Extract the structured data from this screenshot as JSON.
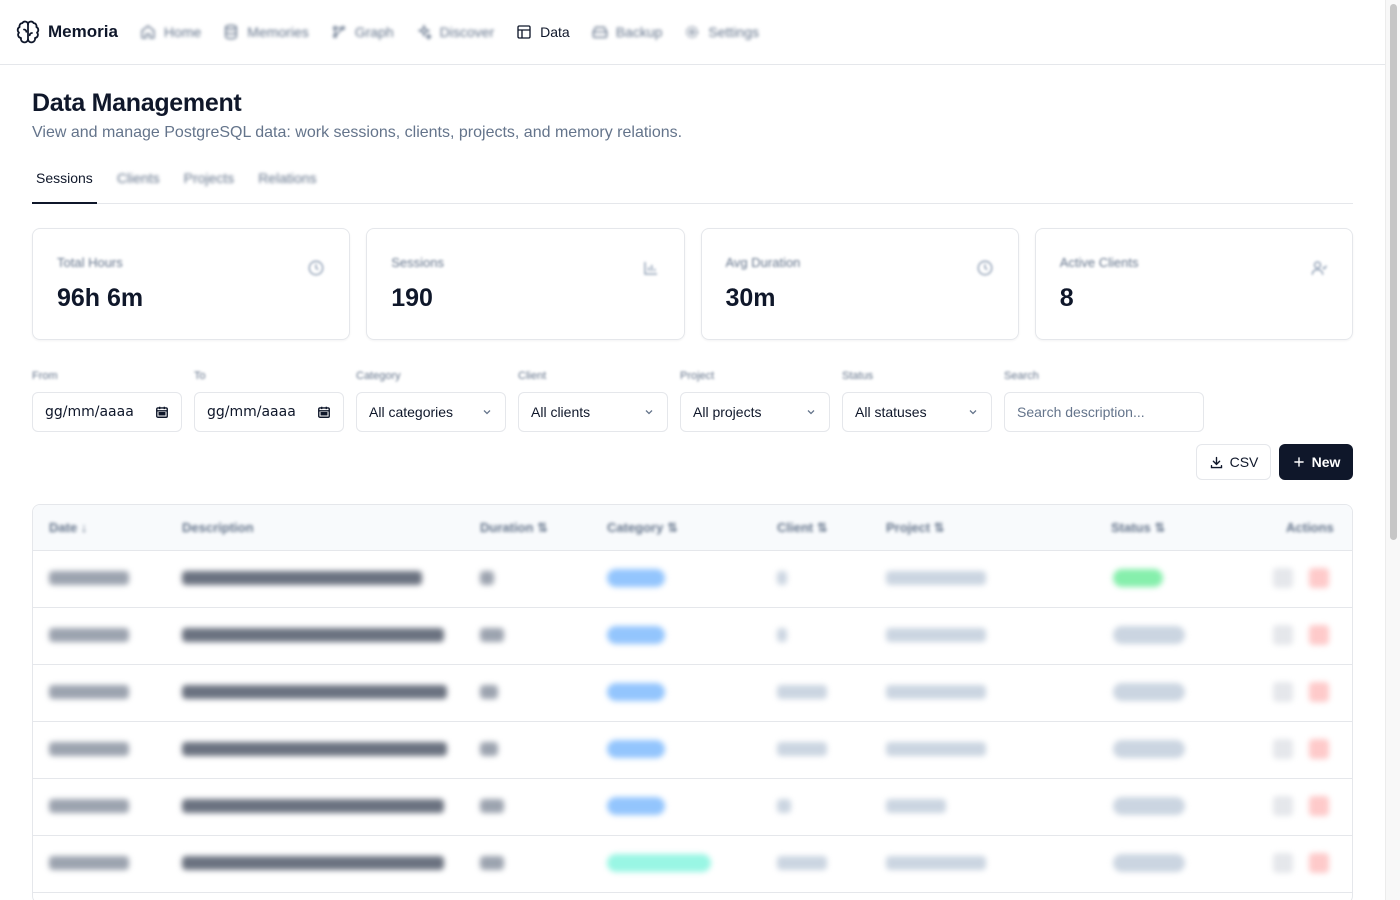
{
  "app": {
    "name": "Memoria"
  },
  "nav": [
    {
      "label": "Home",
      "icon": "home-icon",
      "active": false
    },
    {
      "label": "Memories",
      "icon": "database-icon",
      "active": false
    },
    {
      "label": "Graph",
      "icon": "graph-icon",
      "active": false
    },
    {
      "label": "Discover",
      "icon": "sparkles-icon",
      "active": false
    },
    {
      "label": "Data",
      "icon": "table-icon",
      "active": true
    },
    {
      "label": "Backup",
      "icon": "hard-drive-icon",
      "active": false
    },
    {
      "label": "Settings",
      "icon": "gear-icon",
      "active": false
    }
  ],
  "header": {
    "title": "Data Management",
    "subtitle": "View and manage PostgreSQL data: work sessions, clients, projects, and memory relations."
  },
  "tabs": [
    {
      "label": "Sessions",
      "active": true
    },
    {
      "label": "Clients",
      "active": false
    },
    {
      "label": "Projects",
      "active": false
    },
    {
      "label": "Relations",
      "active": false
    }
  ],
  "stats": [
    {
      "label": "Total Hours",
      "value": "96h 6m",
      "icon": "clock-icon"
    },
    {
      "label": "Sessions",
      "value": "190",
      "icon": "bar-chart-icon"
    },
    {
      "label": "Avg Duration",
      "value": "30m",
      "icon": "clock-icon"
    },
    {
      "label": "Active Clients",
      "value": "8",
      "icon": "users-icon"
    }
  ],
  "filters": {
    "from": {
      "label": "From",
      "value": "gg/mm/aaaa"
    },
    "to": {
      "label": "To",
      "value": "gg/mm/aaaa"
    },
    "category": {
      "label": "Category",
      "value": "All categories"
    },
    "client": {
      "label": "Client",
      "value": "All clients"
    },
    "project": {
      "label": "Project",
      "value": "All projects"
    },
    "status": {
      "label": "Status",
      "value": "All statuses"
    },
    "search": {
      "label": "Search",
      "placeholder": "Search description..."
    }
  },
  "actions": {
    "csv_label": "CSV",
    "new_label": "New"
  },
  "table": {
    "columns": {
      "date": "Date ↓",
      "description": "Description",
      "duration": "Duration ⇅",
      "category": "Category ⇅",
      "client": "Client ⇅",
      "project": "Project ⇅",
      "status": "Status ⇅",
      "actions": "Actions"
    },
    "rows_blurred": 6
  },
  "colors": {
    "primary": "#0f172a",
    "muted": "#64748b",
    "border": "#e5e7eb"
  }
}
